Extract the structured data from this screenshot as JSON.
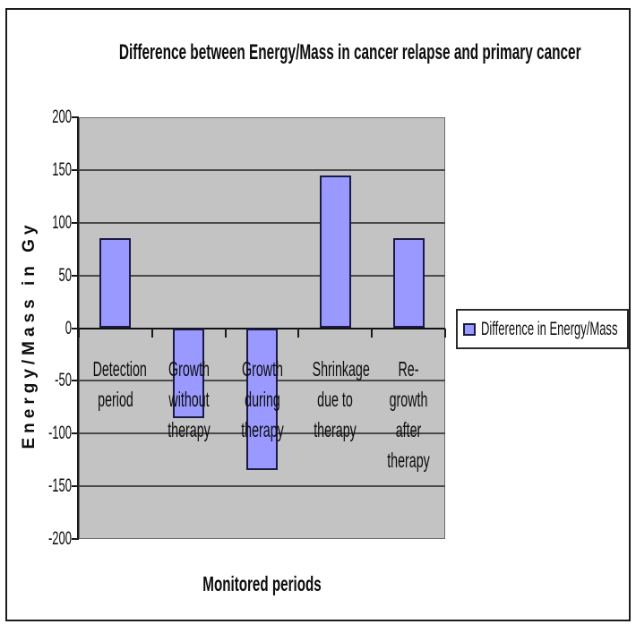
{
  "chart_data": {
    "type": "bar",
    "title": "Difference between Energy/Mass in cancer relapse and primary cancer",
    "xlabel": "Monitored periods",
    "ylabel": "Energy/Mass in Gy",
    "categories": [
      "Detection period",
      "Growth without therapy",
      "Growth during therapy",
      "Shrinkage due to therapy",
      "Re-growth after therapy"
    ],
    "category_lines": [
      [
        "Detection",
        "period"
      ],
      [
        "Growth",
        "without",
        "therapy"
      ],
      [
        "Growth",
        "during",
        "therapy"
      ],
      [
        "Shrinkage",
        "due to",
        "therapy"
      ],
      [
        "Re-growth",
        "after",
        "therapy"
      ]
    ],
    "series": [
      {
        "name": "Difference in Energy/Mass",
        "values": [
          85,
          -85,
          -135,
          145,
          85
        ]
      }
    ],
    "ylim": [
      -200,
      200
    ],
    "ytick_step": 50,
    "yticks": [
      200,
      150,
      100,
      50,
      0,
      -50,
      -100,
      -150,
      -200
    ],
    "grid": true,
    "legend": {
      "label": "Difference in Energy/Mass",
      "position": "right"
    },
    "colors": {
      "bar_fill": "#9999ff",
      "bar_border": "#1a1a45",
      "plot_bg": "#c3c3c3",
      "gridline": "#4a4a4a",
      "zero_axis": "#111111",
      "axis": "#1a1a1a",
      "text": "#0d0d0d",
      "legend_border": "#2b2b2b",
      "frame_border": "#1c1c1c",
      "page_bg": "#ffffff"
    }
  }
}
